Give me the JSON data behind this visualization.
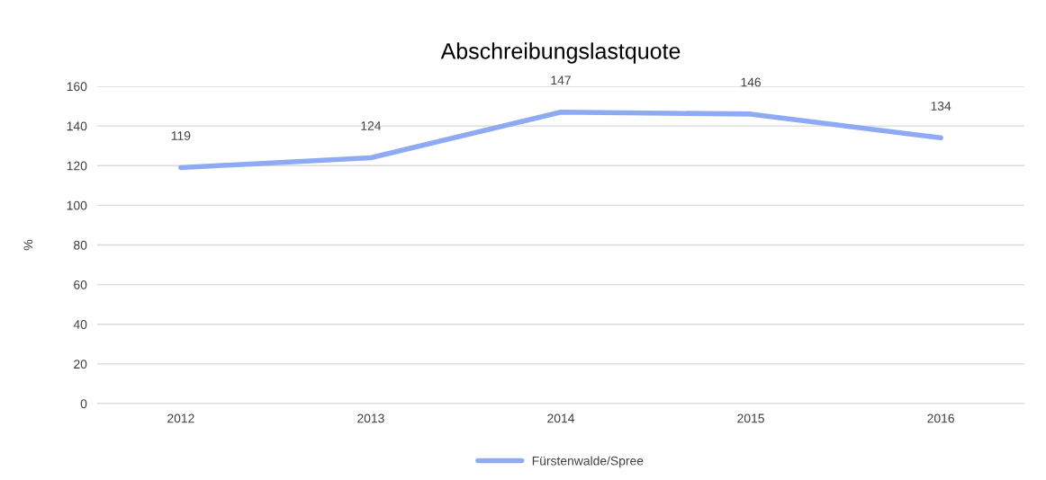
{
  "chart_data": {
    "type": "line",
    "title": "Abschreibungslastquote",
    "ylabel": "%",
    "categories": [
      "2012",
      "2013",
      "2014",
      "2015",
      "2016"
    ],
    "series": [
      {
        "name": "Fürstenwalde/Spree",
        "color": "#8eaaf5",
        "values": [
          119,
          124,
          147,
          146,
          134
        ]
      }
    ],
    "ylim": [
      0,
      160
    ],
    "yticks": [
      0,
      20,
      40,
      60,
      80,
      100,
      120,
      140,
      160
    ],
    "grid": "y",
    "legend": "bottom",
    "data_labels": true,
    "marker": "none",
    "line_style": "solid"
  }
}
